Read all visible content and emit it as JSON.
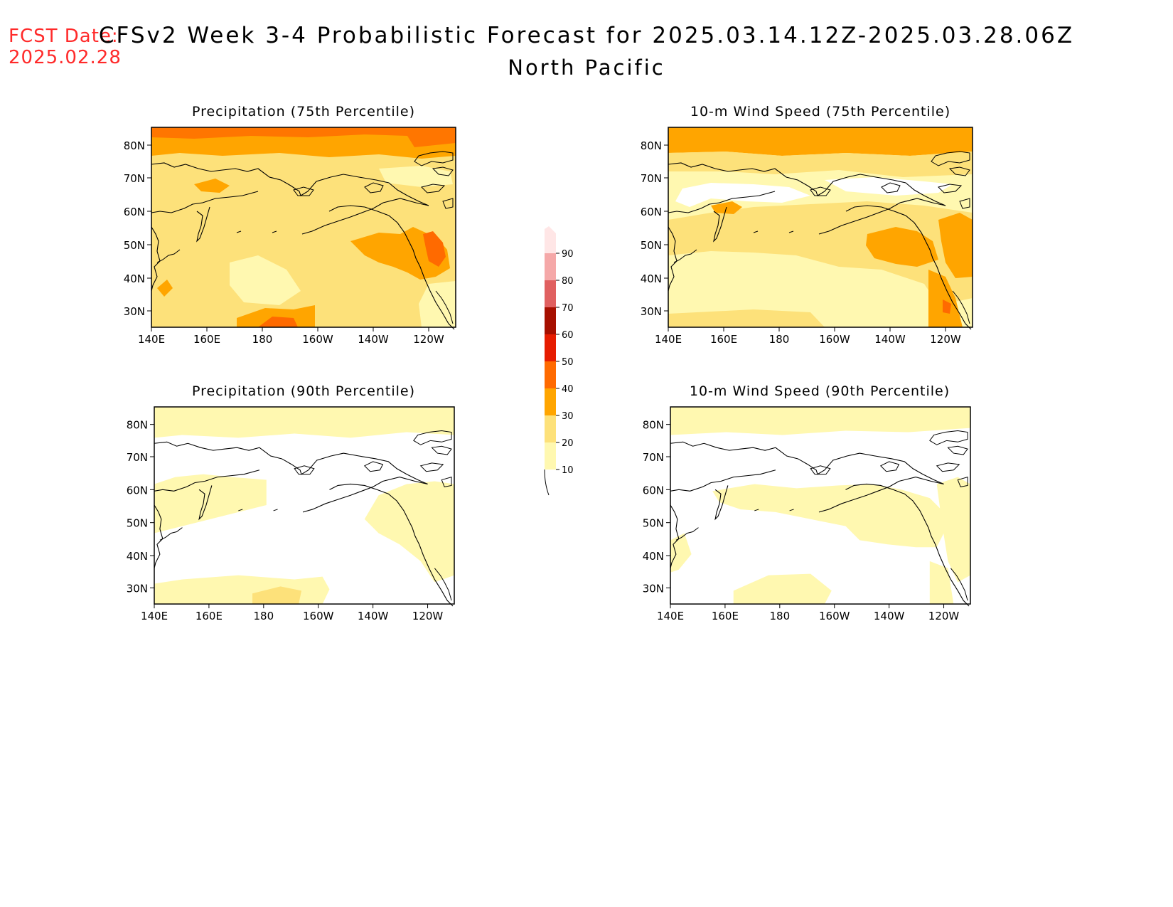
{
  "header": {
    "fcst_date_label": "FCST Date:",
    "fcst_date_value": "2025.02.28",
    "title": "CFSv2 Week 3-4 Probabilistic Forecast for 2025.03.14.12Z-2025.03.28.06Z",
    "region": "North Pacific"
  },
  "panels": [
    {
      "title": "Precipitation (75th Percentile)"
    },
    {
      "title": "10-m Wind Speed (75th Percentile)"
    },
    {
      "title": "Precipitation (90th Percentile)"
    },
    {
      "title": "10-m Wind Speed (90th Percentile)"
    }
  ],
  "axes": {
    "lat_labels": [
      "80N",
      "70N",
      "60N",
      "50N",
      "40N",
      "30N"
    ],
    "lon_labels": [
      "140E",
      "160E",
      "180",
      "160W",
      "140W",
      "120W"
    ]
  },
  "colorbar": {
    "levels": [
      "10",
      "20",
      "30",
      "40",
      "50",
      "60",
      "70",
      "80",
      "90"
    ],
    "colors": [
      "#fff8b0",
      "#fde17a",
      "#ffa500",
      "#ff6a00",
      "#e61c00",
      "#a60f00",
      "#e06060",
      "#f5a8a8",
      "#ffe6e6"
    ]
  },
  "fill_colors": {
    "none": "#ffffff",
    "c10": "#fff8b0",
    "c20": "#fde17a",
    "c30": "#ffa500",
    "c40": "#ff6a00"
  }
}
